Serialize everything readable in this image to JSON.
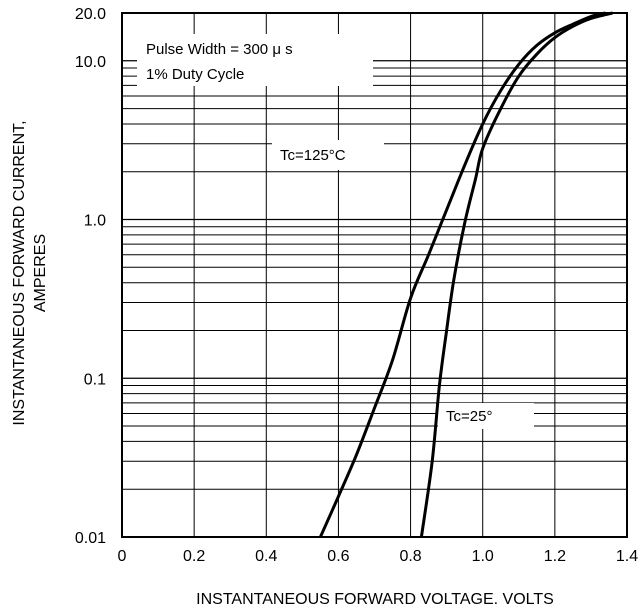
{
  "chart_data": {
    "type": "line",
    "title": "",
    "xlabel": "INSTANTANEOUS FORWARD VOLTAGE. VOLTS",
    "ylabel_line1": "INSTANTANEOUS FORWARD CURRENT,",
    "ylabel_line2": "AMPERES",
    "xlim": [
      0,
      1.4
    ],
    "ylim": [
      0.01,
      20
    ],
    "yscale": "log",
    "grid": true,
    "x_ticks": [
      0,
      0.2,
      0.4,
      0.6,
      0.8,
      1.0,
      1.2,
      1.4
    ],
    "x_tick_labels": [
      "0",
      "0.2",
      "0.4",
      "0.6",
      "0.8",
      "1.0",
      "1.2",
      "1.4"
    ],
    "y_ticks": [
      0.01,
      0.1,
      1.0,
      10.0,
      20.0
    ],
    "y_tick_labels": [
      "0.01",
      "0.1",
      "1.0",
      "10.0",
      "20.0"
    ],
    "annotations": {
      "pulse_width": "Pulse Width = 300 μ s",
      "duty_cycle": "1% Duty Cycle",
      "tc_125": "Tc=125°C",
      "tc_25": "Tc=25°"
    },
    "series": [
      {
        "name": "Tc=125°C",
        "points": [
          [
            0.55,
            0.01
          ],
          [
            0.6,
            0.018
          ],
          [
            0.65,
            0.033
          ],
          [
            0.7,
            0.065
          ],
          [
            0.75,
            0.13
          ],
          [
            0.8,
            0.32
          ],
          [
            0.85,
            0.6
          ],
          [
            0.9,
            1.15
          ],
          [
            0.95,
            2.2
          ],
          [
            1.0,
            4.0
          ],
          [
            1.05,
            6.5
          ],
          [
            1.1,
            9.5
          ],
          [
            1.15,
            12.5
          ],
          [
            1.2,
            15.0
          ],
          [
            1.25,
            17.0
          ],
          [
            1.3,
            19.0
          ],
          [
            1.34,
            20.0
          ]
        ]
      },
      {
        "name": "Tc=25°",
        "points": [
          [
            0.83,
            0.01
          ],
          [
            0.86,
            0.03
          ],
          [
            0.88,
            0.09
          ],
          [
            0.9,
            0.2
          ],
          [
            0.92,
            0.42
          ],
          [
            0.95,
            0.95
          ],
          [
            0.98,
            1.8
          ],
          [
            1.0,
            2.8
          ],
          [
            1.05,
            5.0
          ],
          [
            1.1,
            8.0
          ],
          [
            1.15,
            11.0
          ],
          [
            1.2,
            14.0
          ],
          [
            1.25,
            16.5
          ],
          [
            1.3,
            18.5
          ],
          [
            1.36,
            20.0
          ]
        ]
      }
    ]
  }
}
